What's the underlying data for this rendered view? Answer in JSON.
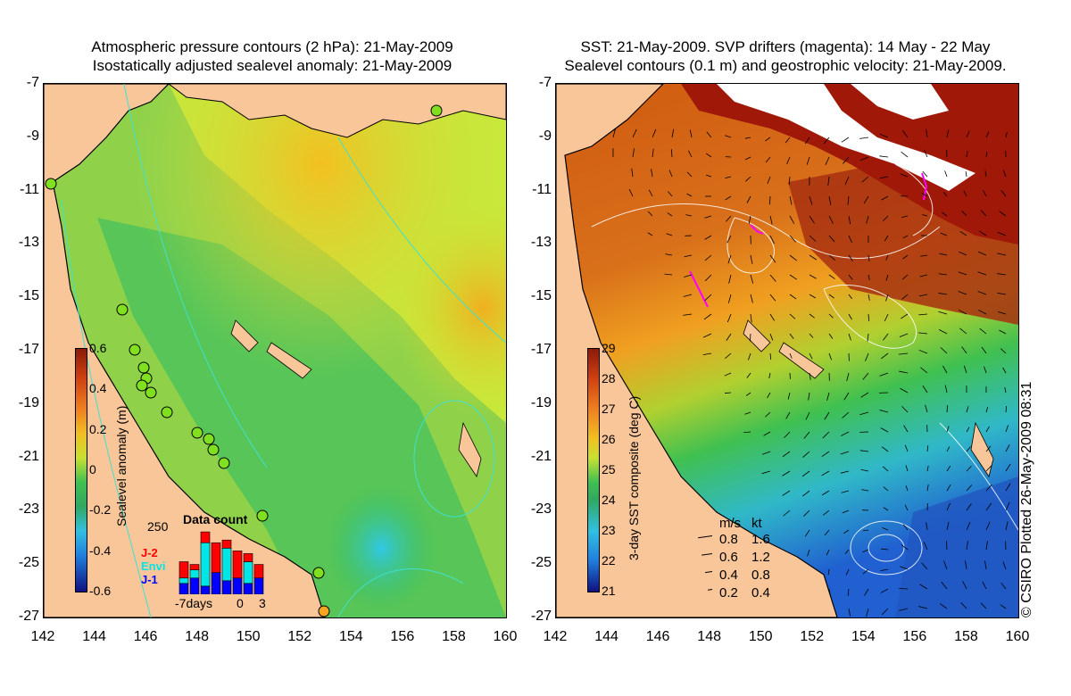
{
  "left_panel": {
    "title_line1": "Atmospheric pressure contours (2 hPa): 21-May-2009",
    "title_line2": "Isostatically adjusted sealevel anomaly: 21-May-2009",
    "y_ticks": [
      "-7",
      "-9",
      "-11",
      "-13",
      "-15",
      "-17",
      "-19",
      "-21",
      "-23",
      "-25",
      "-27"
    ],
    "x_ticks": [
      "142",
      "144",
      "146",
      "148",
      "150",
      "152",
      "154",
      "156",
      "158",
      "160"
    ],
    "colorbar": {
      "label": "Sealevel anomaly (m)",
      "ticks": [
        "0.6",
        "0.4",
        "0.2",
        "0",
        "-0.2",
        "-0.4",
        "-0.6"
      ],
      "range": [
        -0.6,
        0.6
      ]
    },
    "data_count": {
      "title": "Data count",
      "ymax_label": "250",
      "missions": [
        {
          "name": "J-2",
          "color": "#ff0000"
        },
        {
          "name": "Envi",
          "color": "#00e5e5"
        },
        {
          "name": "J-1",
          "color": "#0000ff"
        }
      ],
      "x_label_left": "-7days",
      "x_label_mid": "0",
      "x_label_right": "3",
      "bars": [
        {
          "J-1": 40,
          "Envi": 20,
          "J-2": 60
        },
        {
          "J-1": 60,
          "Envi": 30,
          "J-2": 20
        },
        {
          "J-1": 30,
          "Envi": 160,
          "J-2": 40
        },
        {
          "J-1": 80,
          "Envi": 0,
          "J-2": 110
        },
        {
          "J-1": 50,
          "Envi": 120,
          "J-2": 30
        },
        {
          "J-1": 60,
          "Envi": 0,
          "J-2": 100
        },
        {
          "J-1": 40,
          "Envi": 80,
          "J-2": 30
        },
        {
          "J-1": 60,
          "Envi": 0,
          "J-2": 50
        }
      ]
    }
  },
  "right_panel": {
    "title_line1": "SST: 21-May-2009. SVP drifters (magenta): 14 May - 22 May",
    "title_line2": "Sealevel contours (0.1 m) and geostrophic velocity: 21-May-2009.",
    "y_ticks": [
      "-7",
      "-9",
      "-11",
      "-13",
      "-15",
      "-17",
      "-19",
      "-21",
      "-23",
      "-25",
      "-27"
    ],
    "x_ticks": [
      "142",
      "144",
      "146",
      "148",
      "150",
      "152",
      "154",
      "156",
      "158",
      "160"
    ],
    "colorbar": {
      "label": "3-day SST composite (deg C)",
      "ticks": [
        "29",
        "28",
        "27",
        "26",
        "25",
        "24",
        "23",
        "22",
        "21"
      ],
      "range": [
        21,
        29
      ]
    },
    "velocity_legend": {
      "header_ms": "m/s",
      "header_kt": "kt",
      "rows": [
        {
          "ms": "0.8",
          "kt": "1.6"
        },
        {
          "ms": "0.6",
          "kt": "1.2"
        },
        {
          "ms": "0.4",
          "kt": "0.8"
        },
        {
          "ms": "0.2",
          "kt": "0.4"
        }
      ]
    }
  },
  "credit": "© CSIRO Plotted 26-May-2009 08:31",
  "colors": {
    "land": "#f9c69a",
    "cloud": "#ffffff",
    "drifter": "#ff00ff",
    "pressure_contour": "#40e0d0",
    "tide_gauge": "#80e020"
  }
}
